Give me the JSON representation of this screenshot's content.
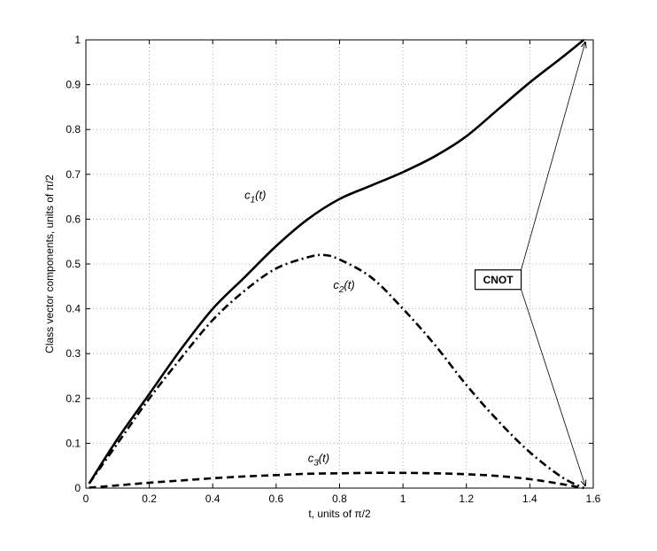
{
  "chart_data": {
    "type": "line",
    "xlabel": "t, units of π/2",
    "ylabel": "Class vector components, units of π/2",
    "xlim": [
      0,
      1.6
    ],
    "ylim": [
      0,
      1
    ],
    "grid": true,
    "x_ticks": [
      "0",
      "0.2",
      "0.4",
      "0.6",
      "0.8",
      "1",
      "1.2",
      "1.4",
      "1.6"
    ],
    "y_ticks": [
      "0",
      "0.1",
      "0.2",
      "0.3",
      "0.4",
      "0.5",
      "0.6",
      "0.7",
      "0.8",
      "0.9",
      "1"
    ],
    "series": [
      {
        "name": "c1(t)",
        "style": "solid",
        "x": [
          0.01,
          0.1,
          0.2,
          0.3,
          0.4,
          0.5,
          0.6,
          0.7,
          0.8,
          0.9,
          1.0,
          1.1,
          1.2,
          1.3,
          1.4,
          1.5,
          1.57
        ],
        "y": [
          0.01,
          0.11,
          0.21,
          0.31,
          0.4,
          0.47,
          0.54,
          0.6,
          0.645,
          0.675,
          0.705,
          0.74,
          0.785,
          0.845,
          0.905,
          0.96,
          1.0
        ]
      },
      {
        "name": "c2(t)",
        "style": "dash-dot",
        "x": [
          0.01,
          0.1,
          0.2,
          0.3,
          0.4,
          0.5,
          0.6,
          0.7,
          0.75,
          0.8,
          0.9,
          1.0,
          1.1,
          1.2,
          1.3,
          1.4,
          1.5,
          1.57
        ],
        "y": [
          0.01,
          0.1,
          0.2,
          0.29,
          0.375,
          0.44,
          0.49,
          0.515,
          0.52,
          0.51,
          0.47,
          0.4,
          0.32,
          0.23,
          0.15,
          0.08,
          0.025,
          0.0
        ]
      },
      {
        "name": "c3(t)",
        "style": "dashed",
        "x": [
          0.01,
          0.1,
          0.2,
          0.3,
          0.4,
          0.5,
          0.6,
          0.7,
          0.8,
          0.9,
          1.0,
          1.1,
          1.2,
          1.3,
          1.4,
          1.5,
          1.57
        ],
        "y": [
          0.001,
          0.006,
          0.012,
          0.017,
          0.022,
          0.026,
          0.029,
          0.032,
          0.033,
          0.034,
          0.034,
          0.033,
          0.031,
          0.027,
          0.02,
          0.009,
          0.0
        ]
      }
    ],
    "series_labels": [
      {
        "base": "c",
        "sub": "1",
        "suffix": "(t)",
        "x": 0.5,
        "y": 0.645
      },
      {
        "base": "c",
        "sub": "2",
        "suffix": "(t)",
        "x": 0.78,
        "y": 0.445
      },
      {
        "base": "c",
        "sub": "3",
        "suffix": "(t)",
        "x": 0.7,
        "y": 0.058
      }
    ],
    "annotation": {
      "text": "CNOT",
      "x": 1.3,
      "y": 0.465,
      "arrows_to": [
        [
          1.575,
          0.995
        ],
        [
          1.575,
          0.005
        ]
      ]
    }
  }
}
